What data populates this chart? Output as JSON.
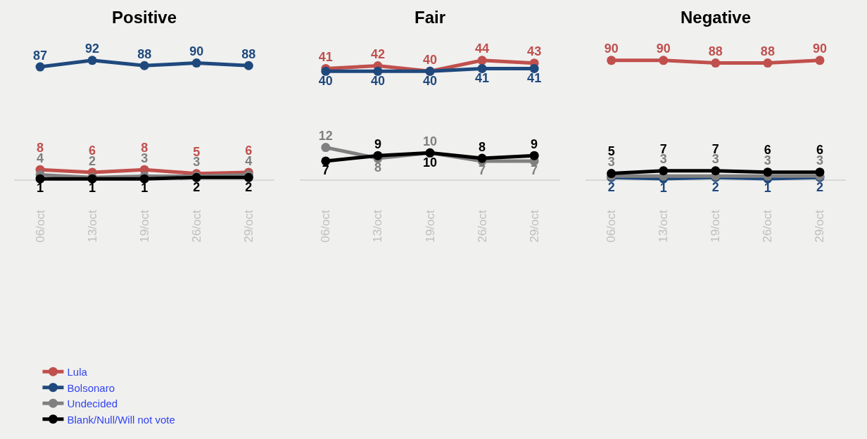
{
  "chart_data": [
    {
      "type": "line",
      "title": "Positive",
      "categories": [
        "06/oct",
        "13/oct",
        "19/oct",
        "26/oct",
        "29/oct"
      ],
      "tick_labels": "x",
      "data_labels": true,
      "marker": "circle",
      "line_style": "solid",
      "grid": false,
      "legend": "bottom left",
      "series": [
        {
          "name": "Lula",
          "color": "#c0504d",
          "values": [
            8,
            6,
            8,
            5,
            6
          ]
        },
        {
          "name": "Bolsonaro",
          "color": "#1f497d",
          "values": [
            87,
            92,
            88,
            90,
            88
          ]
        },
        {
          "name": "Undecided",
          "color": "#808080",
          "values": [
            4,
            2,
            3,
            3,
            4
          ]
        },
        {
          "name": "Blank/Null/Will not vote",
          "color": "#000000",
          "values": [
            1,
            1,
            1,
            2,
            2
          ]
        }
      ]
    },
    {
      "type": "line",
      "title": "Fair",
      "categories": [
        "06/oct",
        "13/oct",
        "19/oct",
        "26/oct",
        "29/oct"
      ],
      "tick_labels": "x",
      "data_labels": true,
      "marker": "circle",
      "line_style": "solid",
      "grid": false,
      "series": [
        {
          "color": "#c0504d",
          "values": [
            41,
            42,
            40,
            44,
            43
          ]
        },
        {
          "color": "#1f497d",
          "values": [
            40,
            40,
            40,
            41,
            41
          ]
        },
        {
          "color": "#808080",
          "values": [
            12,
            8,
            10,
            7,
            7
          ]
        },
        {
          "color": "#000000",
          "values": [
            7,
            9,
            10,
            8,
            9
          ]
        }
      ]
    },
    {
      "type": "line",
      "title": "Negative",
      "categories": [
        "06/oct",
        "13/oct",
        "19/oct",
        "26/oct",
        "29/oct"
      ],
      "tick_labels": "x",
      "data_labels": true,
      "marker": "circle",
      "line_style": "solid",
      "grid": false,
      "series": [
        {
          "color": "#c0504d",
          "values": [
            90,
            90,
            88,
            88,
            90
          ]
        },
        {
          "color": "#1f497d",
          "values": [
            2,
            1,
            2,
            1,
            2
          ]
        },
        {
          "color": "#808080",
          "values": [
            3,
            3,
            3,
            3,
            3
          ]
        },
        {
          "color": "#000000",
          "values": [
            5,
            7,
            7,
            6,
            6
          ]
        }
      ]
    }
  ]
}
